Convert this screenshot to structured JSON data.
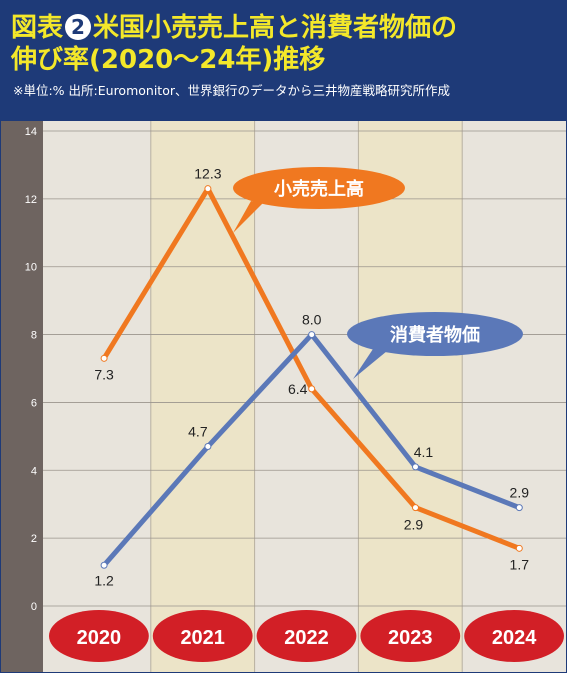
{
  "header": {
    "title_prefix": "図表",
    "badge": "2",
    "title_line1_rest": "米国小売売上高と消費者物価の",
    "title_line2": "伸び率(2020〜24年)推移",
    "note": "※単位:% 出所:Euromonitor、世界銀行のデータから三井物産戦略研究所作成"
  },
  "colors": {
    "header_bg": "#1e3a78",
    "title": "#f4e82a",
    "retail": "#f07820",
    "cpi": "#5b78b8",
    "year_badge": "#d21f26",
    "band_shaded": "#ece4c8",
    "band_plain": "#e8e4dc",
    "axis_strip": "#6e6460"
  },
  "chart_data": {
    "type": "line",
    "categories": [
      "2020",
      "2021",
      "2022",
      "2023",
      "2024"
    ],
    "series": [
      {
        "name": "小売売上高",
        "values": [
          7.3,
          12.3,
          6.4,
          2.9,
          1.7
        ],
        "labels": [
          "7.3",
          "12.3",
          "6.4",
          "2.9",
          "1.7"
        ]
      },
      {
        "name": "消費者物価",
        "values": [
          1.2,
          4.7,
          8.0,
          4.1,
          2.9
        ],
        "labels": [
          "1.2",
          "4.7",
          "8.0",
          "4.1",
          "2.9"
        ]
      }
    ],
    "ylim": [
      0,
      14
    ],
    "yticks": [
      "0",
      "2",
      "4",
      "6",
      "8",
      "10",
      "12",
      "14"
    ],
    "grid": true,
    "legend": "callout bubbles"
  }
}
